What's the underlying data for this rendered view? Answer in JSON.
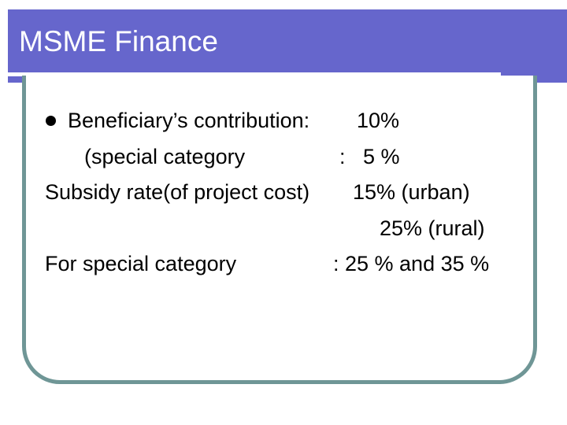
{
  "slide": {
    "title": "MSME Finance",
    "lines": [
      {
        "label": "Beneficiary’s contribution:",
        "value": "10%"
      },
      {
        "label": "(special category",
        "value": ":   5 %"
      },
      {
        "label": "Subsidy rate(of project cost)",
        "value": "15% (urban)"
      },
      {
        "label": "",
        "value": "25% (rural)"
      },
      {
        "label": "For special category",
        "value": ": 25 % and 35 %"
      }
    ]
  },
  "colors": {
    "title_bar": "#6666cc",
    "frame": "#6f9696",
    "text": "#000000"
  }
}
